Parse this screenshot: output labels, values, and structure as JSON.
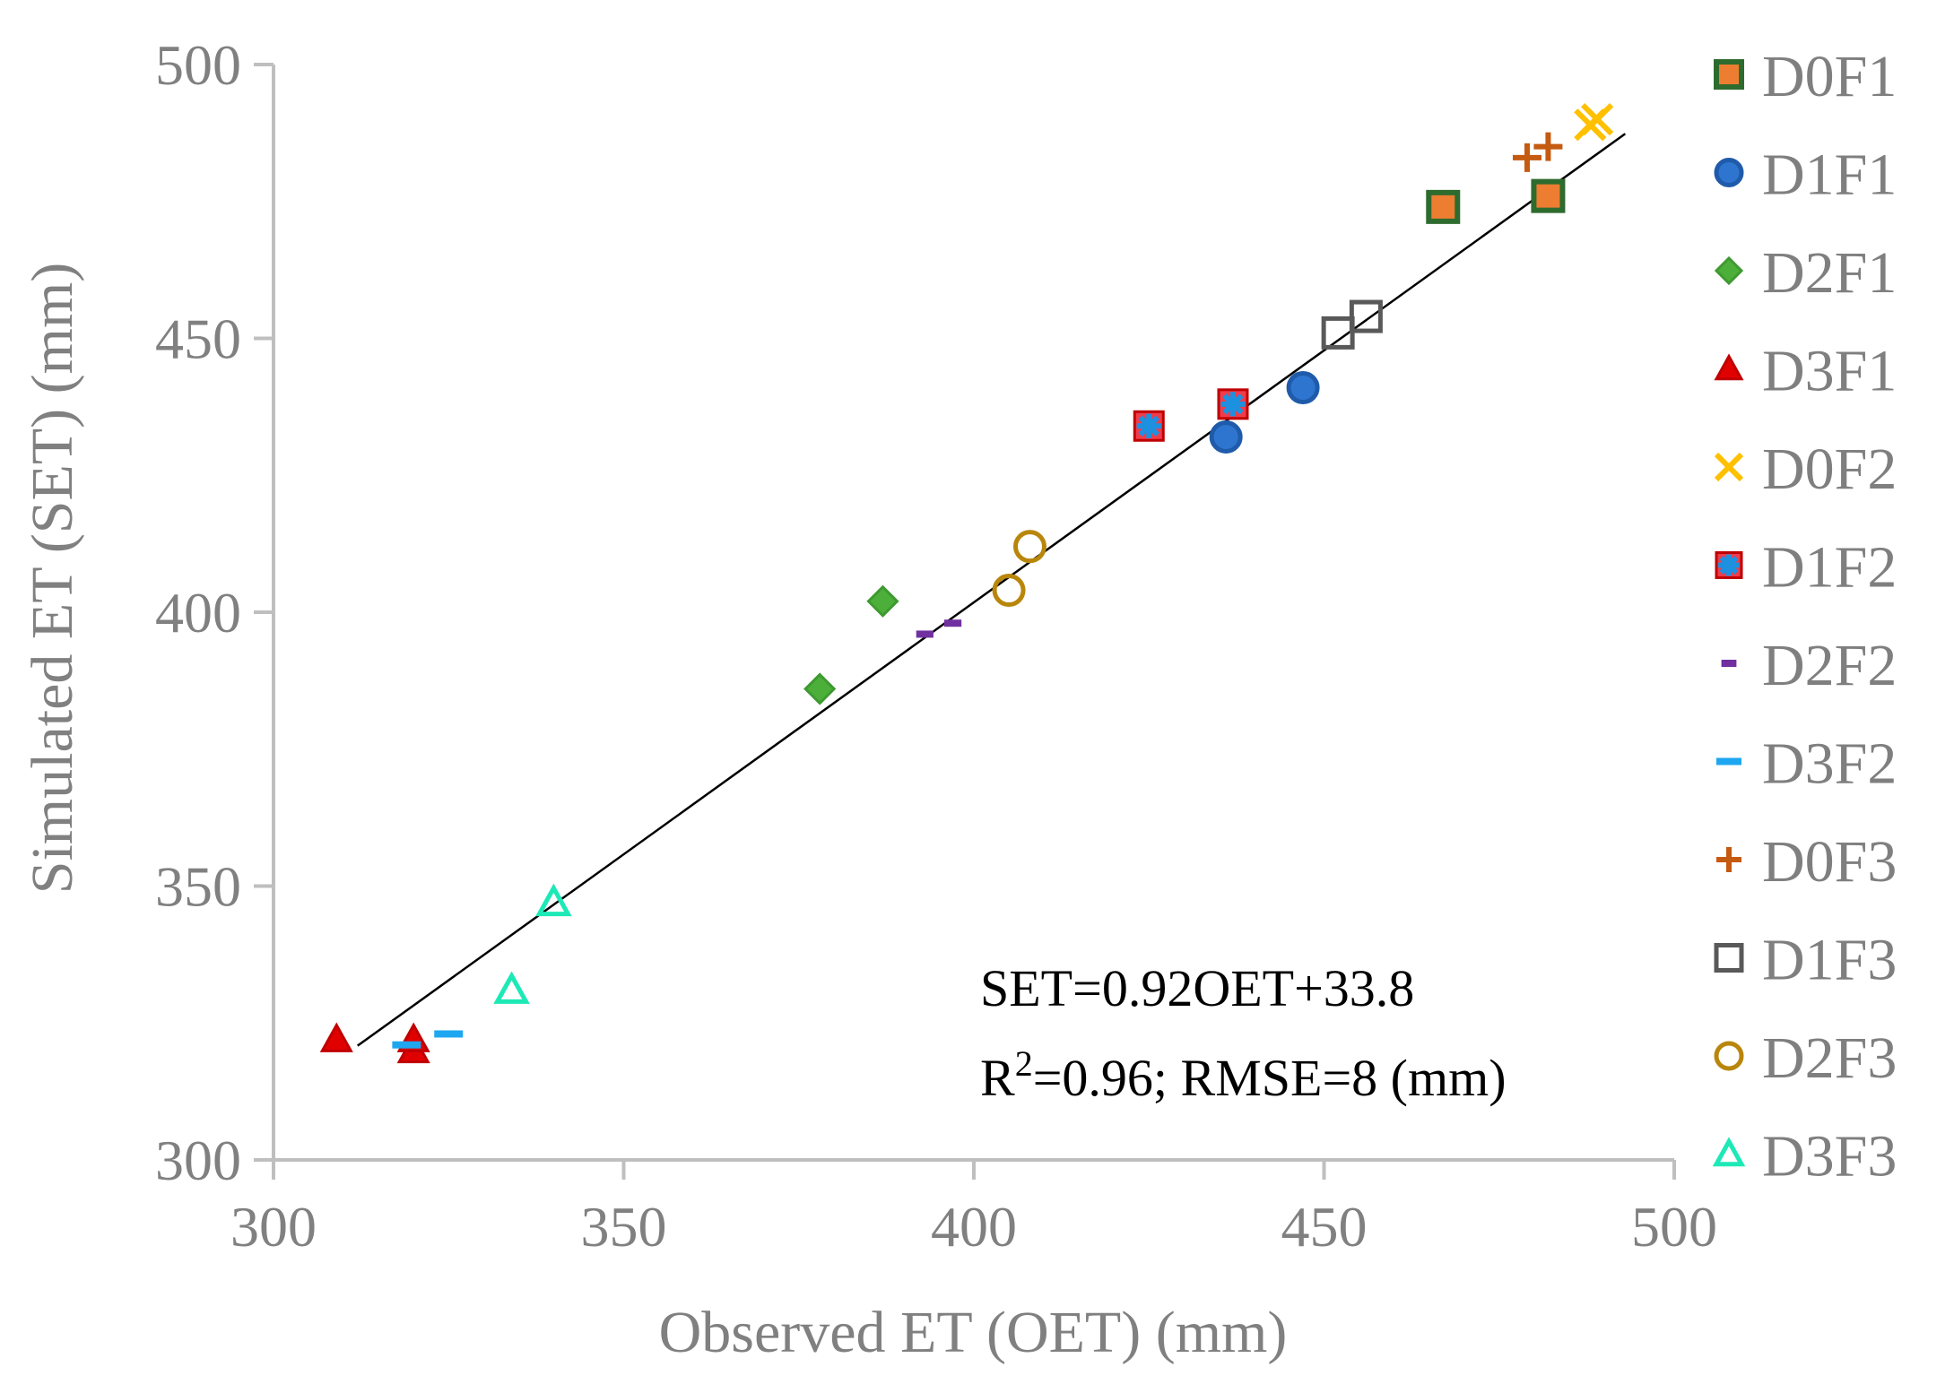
{
  "chart_data": {
    "type": "scatter",
    "title": "",
    "xlabel": "Observed ET (OET) (mm)",
    "ylabel": "Simulated ET (SET) (mm)",
    "xlim": [
      300,
      500
    ],
    "ylim": [
      300,
      500
    ],
    "xticks": [
      300,
      350,
      400,
      450,
      500
    ],
    "yticks": [
      300,
      350,
      400,
      450,
      500
    ],
    "grid": false,
    "legend_position": "right",
    "series": [
      {
        "name": "D0F1",
        "marker": "square",
        "fill": "#ED7D31",
        "stroke": "#2E6B2E",
        "points": [
          [
            467,
            474
          ],
          [
            482,
            476
          ]
        ]
      },
      {
        "name": "D1F1",
        "marker": "circle",
        "fill": "#2E75D0",
        "stroke": "#1F5BAA",
        "points": [
          [
            436,
            432
          ],
          [
            447,
            441
          ]
        ]
      },
      {
        "name": "D2F1",
        "marker": "diamond",
        "fill": "#4CAF3A",
        "stroke": "#3E9A30",
        "points": [
          [
            378,
            386
          ],
          [
            387,
            402
          ]
        ]
      },
      {
        "name": "D3F1",
        "marker": "triangle",
        "fill": "#E00000",
        "stroke": "#C00000",
        "points": [
          [
            309,
            322
          ],
          [
            320,
            320
          ],
          [
            320,
            322
          ]
        ]
      },
      {
        "name": "D0F2",
        "marker": "x",
        "fill": "none",
        "stroke": "#FFC000",
        "points": [
          [
            488,
            489
          ],
          [
            489,
            490
          ]
        ]
      },
      {
        "name": "D1F2",
        "marker": "square-star",
        "fill": "#F03C4A",
        "stroke": "#1E90E0",
        "points": [
          [
            425,
            434
          ],
          [
            437,
            438
          ]
        ]
      },
      {
        "name": "D2F2",
        "marker": "dash",
        "fill": "#7030A0",
        "stroke": "#7030A0",
        "points": [
          [
            393,
            396
          ],
          [
            397,
            398
          ]
        ]
      },
      {
        "name": "D3F2",
        "marker": "dash-long",
        "fill": "#1EA7F0",
        "stroke": "#1EA7F0",
        "points": [
          [
            319,
            321
          ],
          [
            325,
            323
          ]
        ]
      },
      {
        "name": "D0F3",
        "marker": "plus",
        "fill": "none",
        "stroke": "#C55A11",
        "points": [
          [
            479,
            483
          ],
          [
            482,
            485
          ]
        ]
      },
      {
        "name": "D1F3",
        "marker": "square-open",
        "fill": "none",
        "stroke": "#595959",
        "points": [
          [
            452,
            451
          ],
          [
            456,
            454
          ]
        ]
      },
      {
        "name": "D2F3",
        "marker": "circle-open",
        "fill": "none",
        "stroke": "#B8860B",
        "points": [
          [
            405,
            404
          ],
          [
            408,
            412
          ]
        ]
      },
      {
        "name": "D3F3",
        "marker": "triangle-open",
        "fill": "none",
        "stroke": "#1DE9B6",
        "points": [
          [
            334,
            331
          ],
          [
            340,
            347
          ]
        ]
      }
    ],
    "trendline": {
      "slope": 0.92,
      "intercept": 33.8,
      "x_range": [
        312,
        493
      ],
      "color": "#000000"
    },
    "annotations": {
      "equation": "SET=0.92OET+33.8",
      "stats_r": "R",
      "stats_sup": "2",
      "stats_rest": "=0.96; RMSE=8 (mm)"
    }
  }
}
